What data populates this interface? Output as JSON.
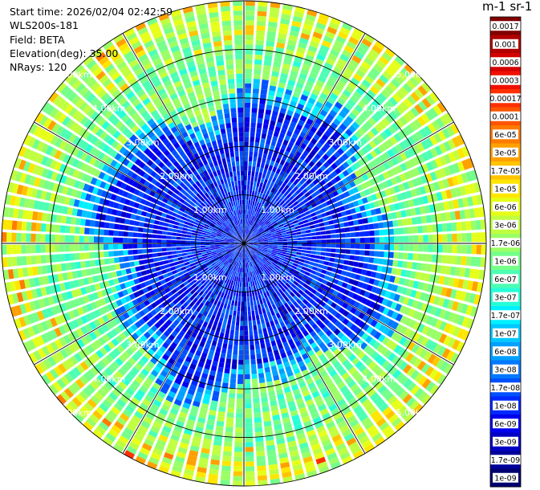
{
  "info": {
    "start_time": "Start time: 2026/02/04 02:42:59",
    "instrument": "WLS200s-181",
    "field": "Field: BETA",
    "elevation": "Elevation(deg): 35.00",
    "nrays": "NRays: 120"
  },
  "colorbar": {
    "unit_label": "m-1 sr-1",
    "ticks": [
      "0.0017",
      "0.001",
      "0.0006",
      "0.0003",
      "0.00017",
      "0.0001",
      "6e-05",
      "3e-05",
      "1.7e-05",
      "1e-05",
      "6e-06",
      "3e-06",
      "1.7e-06",
      "1e-06",
      "6e-07",
      "3e-07",
      "1.7e-07",
      "1e-07",
      "6e-08",
      "3e-08",
      "1.7e-08",
      "1e-08",
      "6e-09",
      "3e-09",
      "1.7e-09",
      "1e-09"
    ],
    "colors": [
      "#7f0000",
      "#b00000",
      "#d40000",
      "#f01000",
      "#ff3000",
      "#ff5500",
      "#ff7a00",
      "#ffa000",
      "#ffc400",
      "#ffe600",
      "#e6ff19",
      "#c0ff40",
      "#9aff66",
      "#75ff8a",
      "#4dffb3",
      "#27ffd7",
      "#00f0ff",
      "#00c8ff",
      "#00a0ff",
      "#0078ff",
      "#0050ff",
      "#0028ff",
      "#0000ee",
      "#0000c4",
      "#00009a",
      "#000070"
    ]
  },
  "range_labels": [
    "1.00km",
    "2.00km",
    "3.00km",
    "4.00km",
    "5.00km"
  ],
  "chart_data": {
    "type": "polar_ppi",
    "field": "BETA",
    "nrays": 120,
    "elevation_deg": 35.0,
    "range_rings_km": [
      1,
      2,
      3,
      4,
      5
    ],
    "max_range_km": 5.0,
    "log_scale": true,
    "color_range": [
      1e-09,
      0.0017
    ],
    "pattern": "low backscatter (blue, ~1e-08) within about 2.8 km, rising to green/cyan (~1e-06) beyond 3 km with scattered yellow-orange patches (~1e-05) near the outer edge"
  }
}
